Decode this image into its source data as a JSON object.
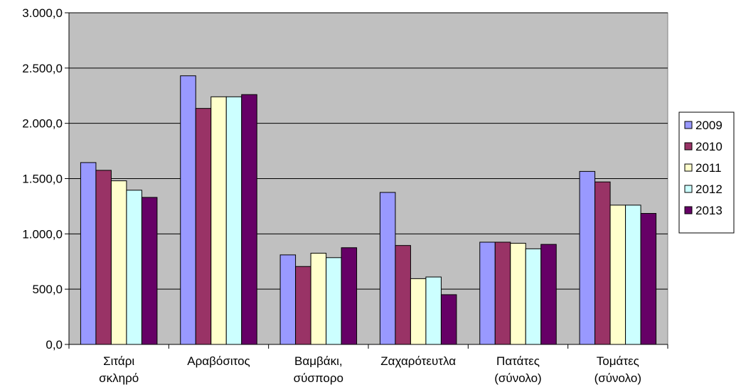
{
  "chart_data": {
    "type": "bar",
    "categories": [
      [
        "Σιτάρι",
        "σκληρό"
      ],
      [
        "Αραβόσιτος"
      ],
      [
        "Βαμβάκι,",
        "σύσπορο"
      ],
      [
        "Ζαχαρότευτλα"
      ],
      [
        "Πατάτες",
        "(σύνολο)"
      ],
      [
        "Τομάτες",
        "(σύνολο)"
      ]
    ],
    "series": [
      {
        "name": "2009",
        "color": "#9999ff",
        "values": [
          1645,
          2430,
          810,
          1375,
          925,
          1565
        ]
      },
      {
        "name": "2010",
        "color": "#993366",
        "values": [
          1575,
          2135,
          705,
          895,
          925,
          1470
        ]
      },
      {
        "name": "2011",
        "color": "#ffffcc",
        "values": [
          1480,
          2240,
          825,
          595,
          915,
          1260
        ]
      },
      {
        "name": "2012",
        "color": "#ccffff",
        "values": [
          1395,
          2240,
          785,
          610,
          865,
          1260
        ]
      },
      {
        "name": "2013",
        "color": "#660066",
        "values": [
          1330,
          2260,
          875,
          450,
          905,
          1185
        ]
      }
    ],
    "ylim": [
      0,
      3000
    ],
    "yticks": [
      {
        "value": 0,
        "label": "0,0"
      },
      {
        "value": 500,
        "label": "500,0"
      },
      {
        "value": 1000,
        "label": "1.000,0"
      },
      {
        "value": 1500,
        "label": "1.500,0"
      },
      {
        "value": 2000,
        "label": "2.000,0"
      },
      {
        "value": 2500,
        "label": "2.500,0"
      },
      {
        "value": 3000,
        "label": "3.000,0"
      }
    ],
    "plot_background": "#c0c0c0",
    "grid": true,
    "legend_position": "right"
  }
}
